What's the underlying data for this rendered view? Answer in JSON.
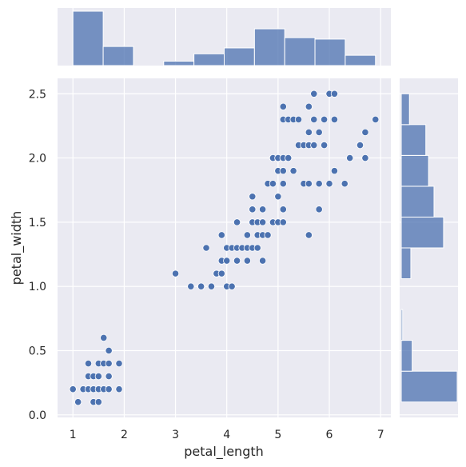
{
  "chart_data": {
    "type": "scatter",
    "subtype": "jointplot",
    "title": "",
    "xlabel": "petal_length",
    "ylabel": "petal_width",
    "xlim": [
      0.7,
      7.2
    ],
    "ylim": [
      -0.02,
      2.62
    ],
    "xticks": [
      1,
      2,
      3,
      4,
      5,
      6,
      7
    ],
    "yticks": [
      0.0,
      0.5,
      1.0,
      1.5,
      2.0,
      2.5
    ],
    "xtick_labels": [
      "1",
      "2",
      "3",
      "4",
      "5",
      "6",
      "7"
    ],
    "ytick_labels": [
      "0.0",
      "0.5",
      "1.0",
      "1.5",
      "2.0",
      "2.5"
    ],
    "grid": true,
    "colors": {
      "background": "#eaeaf2",
      "grid": "#ffffff",
      "marker": "#4c72b0",
      "marker_edge": "#ffffff",
      "hist": "#4c72b0",
      "text": "#262626"
    },
    "points": [
      [
        1.0,
        0.2
      ],
      [
        1.1,
        0.1
      ],
      [
        1.2,
        0.2
      ],
      [
        1.3,
        0.2
      ],
      [
        1.3,
        0.3
      ],
      [
        1.3,
        0.4
      ],
      [
        1.4,
        0.1
      ],
      [
        1.4,
        0.2
      ],
      [
        1.4,
        0.3
      ],
      [
        1.5,
        0.1
      ],
      [
        1.5,
        0.2
      ],
      [
        1.5,
        0.3
      ],
      [
        1.5,
        0.4
      ],
      [
        1.6,
        0.2
      ],
      [
        1.6,
        0.4
      ],
      [
        1.6,
        0.6
      ],
      [
        1.7,
        0.2
      ],
      [
        1.7,
        0.3
      ],
      [
        1.7,
        0.4
      ],
      [
        1.7,
        0.5
      ],
      [
        1.9,
        0.2
      ],
      [
        1.9,
        0.4
      ],
      [
        3.0,
        1.1
      ],
      [
        3.3,
        1.0
      ],
      [
        3.5,
        1.0
      ],
      [
        3.6,
        1.3
      ],
      [
        3.7,
        1.0
      ],
      [
        3.8,
        1.1
      ],
      [
        3.9,
        1.1
      ],
      [
        3.9,
        1.2
      ],
      [
        3.9,
        1.4
      ],
      [
        4.0,
        1.0
      ],
      [
        4.0,
        1.2
      ],
      [
        4.0,
        1.3
      ],
      [
        4.1,
        1.0
      ],
      [
        4.1,
        1.3
      ],
      [
        4.2,
        1.2
      ],
      [
        4.2,
        1.3
      ],
      [
        4.2,
        1.5
      ],
      [
        4.3,
        1.3
      ],
      [
        4.4,
        1.2
      ],
      [
        4.4,
        1.3
      ],
      [
        4.4,
        1.4
      ],
      [
        4.5,
        1.3
      ],
      [
        4.5,
        1.5
      ],
      [
        4.5,
        1.6
      ],
      [
        4.5,
        1.7
      ],
      [
        4.6,
        1.3
      ],
      [
        4.6,
        1.4
      ],
      [
        4.6,
        1.5
      ],
      [
        4.7,
        1.2
      ],
      [
        4.7,
        1.4
      ],
      [
        4.7,
        1.5
      ],
      [
        4.7,
        1.6
      ],
      [
        4.8,
        1.4
      ],
      [
        4.8,
        1.8
      ],
      [
        4.9,
        1.5
      ],
      [
        4.9,
        1.8
      ],
      [
        4.9,
        2.0
      ],
      [
        5.0,
        1.5
      ],
      [
        5.0,
        1.7
      ],
      [
        5.0,
        1.9
      ],
      [
        5.0,
        2.0
      ],
      [
        5.1,
        1.5
      ],
      [
        5.1,
        1.6
      ],
      [
        5.1,
        1.8
      ],
      [
        5.1,
        1.9
      ],
      [
        5.1,
        2.0
      ],
      [
        5.1,
        2.3
      ],
      [
        5.1,
        2.4
      ],
      [
        5.2,
        2.0
      ],
      [
        5.2,
        2.3
      ],
      [
        5.3,
        1.9
      ],
      [
        5.3,
        2.3
      ],
      [
        5.4,
        2.1
      ],
      [
        5.4,
        2.3
      ],
      [
        5.5,
        1.8
      ],
      [
        5.5,
        2.1
      ],
      [
        5.6,
        1.4
      ],
      [
        5.6,
        1.8
      ],
      [
        5.6,
        2.1
      ],
      [
        5.6,
        2.2
      ],
      [
        5.6,
        2.4
      ],
      [
        5.7,
        2.1
      ],
      [
        5.7,
        2.3
      ],
      [
        5.7,
        2.5
      ],
      [
        5.8,
        1.6
      ],
      [
        5.8,
        1.8
      ],
      [
        5.8,
        2.2
      ],
      [
        5.9,
        2.1
      ],
      [
        5.9,
        2.3
      ],
      [
        6.0,
        1.8
      ],
      [
        6.0,
        2.5
      ],
      [
        6.1,
        1.9
      ],
      [
        6.1,
        2.3
      ],
      [
        6.1,
        2.5
      ],
      [
        6.3,
        1.8
      ],
      [
        6.4,
        2.0
      ],
      [
        6.6,
        2.1
      ],
      [
        6.7,
        2.0
      ],
      [
        6.7,
        2.2
      ],
      [
        6.9,
        2.3
      ]
    ],
    "marginal_x": {
      "bin_edges": [
        1.0,
        1.59,
        2.18,
        2.77,
        3.36,
        3.95,
        4.54,
        5.13,
        5.72,
        6.31,
        6.9
      ],
      "counts": [
        37,
        13,
        0,
        3,
        8,
        12,
        25,
        19,
        18,
        7
      ]
    },
    "marginal_y": {
      "bin_edges": [
        0.1,
        0.34,
        0.58,
        0.82,
        1.06,
        1.3,
        1.54,
        1.78,
        2.02,
        2.26,
        2.5
      ],
      "counts": [
        41,
        8,
        1,
        0,
        7,
        31,
        24,
        20,
        18,
        6
      ]
    }
  }
}
